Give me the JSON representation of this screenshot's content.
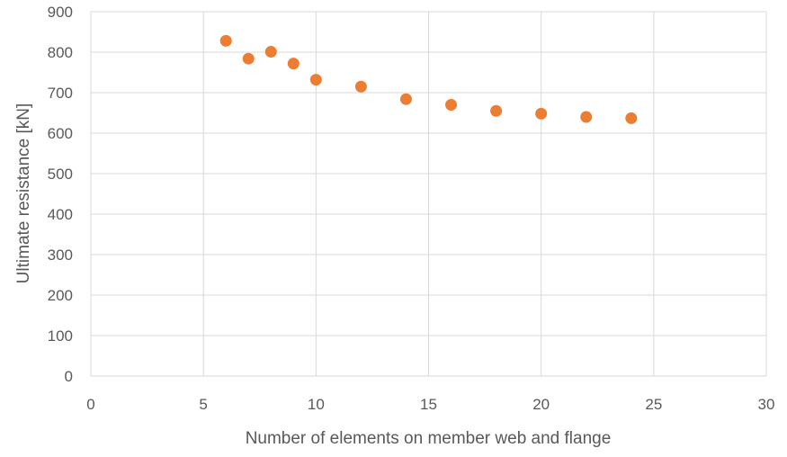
{
  "chart_data": {
    "type": "scatter",
    "title": "",
    "xlabel": "Number of elements on member web and flange",
    "ylabel": "Ultimate resistance [kN]",
    "xlim": [
      0,
      30
    ],
    "ylim": [
      0,
      900
    ],
    "xticks": [
      0,
      5,
      10,
      15,
      20,
      25,
      30
    ],
    "yticks": [
      0,
      100,
      200,
      300,
      400,
      500,
      600,
      700,
      800,
      900
    ],
    "grid": true,
    "legend": "none",
    "marker_color": "#ED7D31",
    "grid_color": "#D9D9D9",
    "series": [
      {
        "x": [
          6,
          7,
          8,
          9,
          10,
          12,
          14,
          16,
          18,
          20,
          22,
          24
        ],
        "y": [
          828,
          784,
          801,
          772,
          732,
          715,
          684,
          670,
          655,
          648,
          640,
          637
        ]
      }
    ]
  }
}
